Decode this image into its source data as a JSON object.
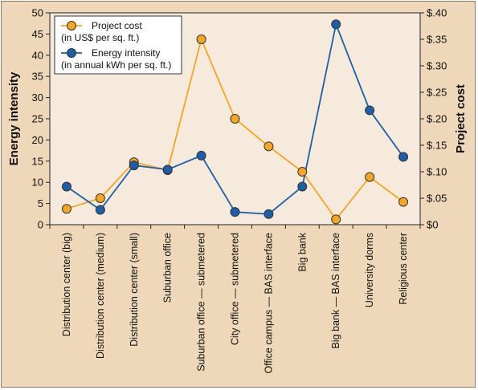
{
  "colors": {
    "background": "#eed8b9",
    "plot_area": "#f6eadc",
    "cost_line": "#f5a623",
    "cost_marker": "#f5a623",
    "energy_line": "#1d5ea8",
    "energy_marker": "#1d5ea8"
  },
  "chart_data": {
    "type": "line",
    "categories": [
      "Distribution center (big)",
      "Distribution center (medium)",
      "Distribution center (small)",
      "Suburban office",
      "Suburban office — submetered",
      "City office — submetered",
      "Office campus — BAS interface",
      "Big bank",
      "Big bank — BAS interface",
      "University dorms",
      "Religious center"
    ],
    "series": [
      {
        "name": "Project cost",
        "legend_line2": "(in US$ per sq. ft.)",
        "axis": "right",
        "values": [
          0.03,
          0.05,
          0.118,
          0.103,
          0.35,
          0.2,
          0.148,
          0.1,
          0.01,
          0.09,
          0.043
        ]
      },
      {
        "name": "Energy intensity",
        "legend_line2": "(in annual kWh per sq. ft.)",
        "axis": "left",
        "values": [
          9,
          3.5,
          14,
          13,
          16.3,
          3,
          2.5,
          9,
          47.3,
          27,
          16
        ]
      }
    ],
    "ylabel": "Energy intensity",
    "y2label": "Project cost",
    "ylim": [
      0,
      50
    ],
    "y2lim": [
      0,
      0.4
    ],
    "yticks": [
      "0",
      "5",
      "10",
      "15",
      "20",
      "25",
      "30",
      "35",
      "40",
      "45",
      "50"
    ],
    "y2ticks": [
      "$0",
      "$.05",
      "$.10",
      "$.15",
      "$.20",
      "$.25",
      "$.30",
      "$.35",
      "$.40"
    ],
    "legend_position": "top-left",
    "grid": false
  }
}
